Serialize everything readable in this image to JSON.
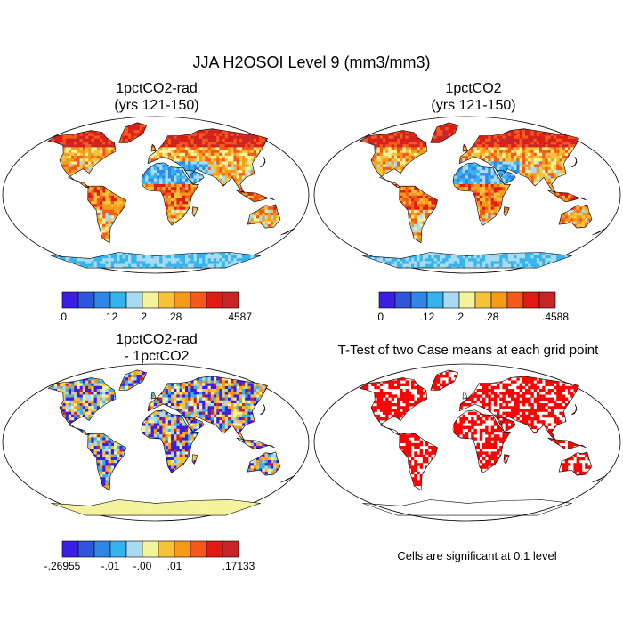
{
  "page": {
    "main_title": "JJA H2OSOI Level 9 (mm3/mm3)",
    "note": "Cells are significant at 0.1 level"
  },
  "chart_data": [
    {
      "type": "heatmap",
      "title": [
        "1pctCO2-rad",
        "(yrs 121-150)"
      ],
      "colorbar": {
        "colors": [
          "#3b1ee6",
          "#2f55d9",
          "#2f86e6",
          "#33b4ef",
          "#a8daf0",
          "#f3f39c",
          "#f6c23a",
          "#f79a16",
          "#f4591a",
          "#e01b12",
          "#c82626"
        ],
        "tick_labels": [
          ".0",
          ".12",
          ".2",
          ".28",
          ".4587"
        ],
        "tick_bins": [
          0,
          3,
          5,
          7,
          11
        ]
      }
    },
    {
      "type": "heatmap",
      "title": [
        "1pctCO2",
        "(yrs 121-150)"
      ],
      "colorbar": {
        "colors": [
          "#3b1ee6",
          "#2f55d9",
          "#2f86e6",
          "#33b4ef",
          "#a8daf0",
          "#f3f39c",
          "#f6c23a",
          "#f79a16",
          "#f4591a",
          "#e01b12",
          "#c82626"
        ],
        "tick_labels": [
          ".0",
          ".12",
          ".2",
          ".28",
          ".4588"
        ],
        "tick_bins": [
          0,
          3,
          5,
          7,
          11
        ]
      }
    },
    {
      "type": "heatmap",
      "title": [
        "1pctCO2-rad",
        "- 1pctCO2"
      ],
      "colorbar": {
        "colors": [
          "#3b1ee6",
          "#2f55d9",
          "#2f86e6",
          "#33b4ef",
          "#a8daf0",
          "#f3f39c",
          "#f6c23a",
          "#f79a16",
          "#f4591a",
          "#e01b12",
          "#c82626"
        ],
        "tick_labels": [
          "-.26955",
          "-.01",
          "-.00",
          ".01",
          ".17133"
        ],
        "tick_bins": [
          0,
          3,
          5,
          7,
          11
        ]
      }
    },
    {
      "type": "heatmap",
      "title": [
        "T-Test of two Case means at each grid point"
      ],
      "significant_color": "#ff0000"
    }
  ]
}
